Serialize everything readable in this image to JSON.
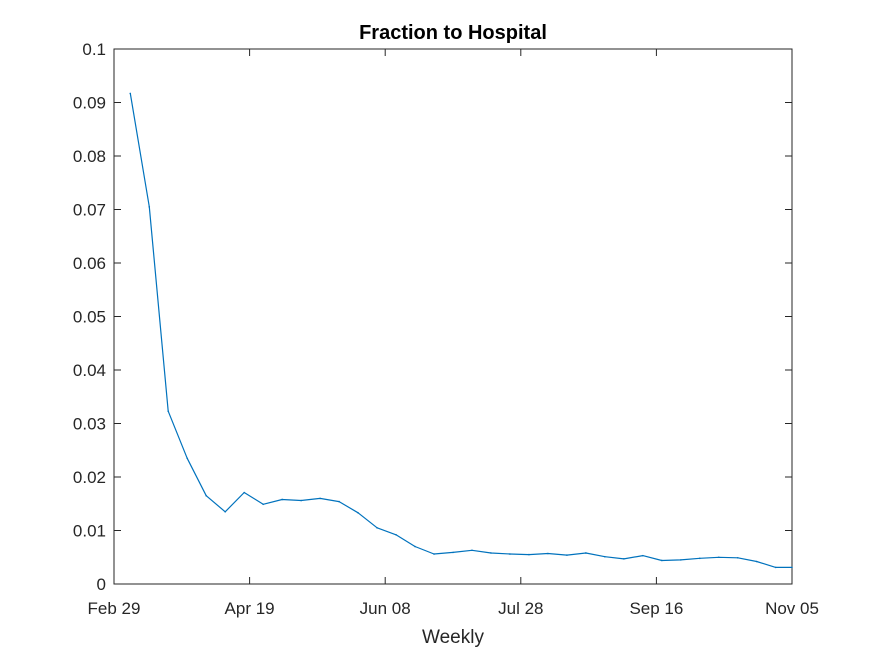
{
  "chart_data": {
    "type": "line",
    "title": "Fraction to Hospital",
    "xlabel": "Weekly",
    "ylabel": "",
    "ylim": [
      0,
      0.1
    ],
    "xlim": [
      "Feb 29",
      "Nov 05"
    ],
    "x_tick_labels": [
      "Feb 29",
      "Apr 19",
      "Jun 08",
      "Jul 28",
      "Sep 16",
      "Nov 05"
    ],
    "y_tick_labels": [
      "0",
      "0.01",
      "0.02",
      "0.03",
      "0.04",
      "0.05",
      "0.06",
      "0.07",
      "0.08",
      "0.09",
      "0.1"
    ],
    "y_ticks": [
      0,
      0.01,
      0.02,
      0.03,
      0.04,
      0.05,
      0.06,
      0.07,
      0.08,
      0.09,
      0.1
    ],
    "grid": false,
    "series": [
      {
        "color": "#0072BD",
        "x": [
          "Mar 06",
          "Mar 13",
          "Mar 20",
          "Mar 27",
          "Apr 03",
          "Apr 10",
          "Apr 17",
          "Apr 24",
          "May 01",
          "May 08",
          "May 15",
          "May 22",
          "May 29",
          "Jun 05",
          "Jun 12",
          "Jun 19",
          "Jun 26",
          "Jul 03",
          "Jul 10",
          "Jul 17",
          "Jul 24",
          "Jul 31",
          "Aug 07",
          "Aug 14",
          "Aug 21",
          "Aug 28",
          "Sep 04",
          "Sep 11",
          "Sep 18",
          "Sep 25",
          "Oct 02",
          "Oct 09",
          "Oct 16",
          "Oct 23",
          "Oct 30",
          "Nov 05"
        ],
        "values": [
          0.0917,
          0.0705,
          0.0323,
          0.0235,
          0.0165,
          0.0135,
          0.0171,
          0.0149,
          0.0158,
          0.0156,
          0.016,
          0.0154,
          0.0133,
          0.0105,
          0.0092,
          0.007,
          0.0056,
          0.0059,
          0.0063,
          0.0058,
          0.0056,
          0.0055,
          0.0057,
          0.0054,
          0.0058,
          0.0051,
          0.0047,
          0.0053,
          0.0044,
          0.0045,
          0.0048,
          0.005,
          0.0049,
          0.0042,
          0.0031,
          0.0031
        ]
      }
    ]
  }
}
